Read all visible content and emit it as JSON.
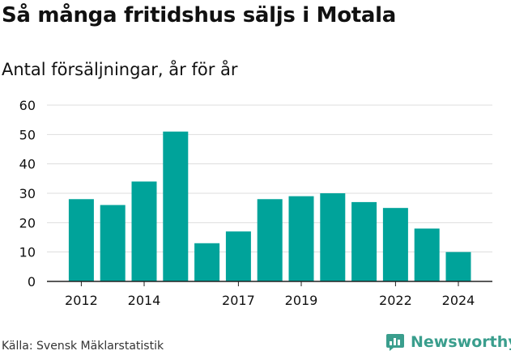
{
  "title": "Så många fritidshus säljs i Motala",
  "subtitle": "Antal försäljningar, år för år",
  "source": "Källa: Svensk Mäklarstatistik",
  "brand": {
    "name": "Newsworthy",
    "icon": "newsworthy-chart-logo-icon",
    "color": "#3a9e8d"
  },
  "colors": {
    "bar": "#00a39a",
    "grid": "#dddddd",
    "axis": "#222222",
    "text": "#111111"
  },
  "chart_data": {
    "type": "bar",
    "title": "Så många fritidshus säljs i Motala",
    "ylabel": "Antal försäljningar, år för år",
    "xlabel": "",
    "categories": [
      "2012",
      "2013",
      "2014",
      "2015",
      "2016",
      "2017",
      "2018",
      "2019",
      "2020",
      "2021",
      "2022",
      "2023",
      "2024"
    ],
    "values": [
      28,
      26,
      34,
      51,
      13,
      17,
      28,
      29,
      30,
      27,
      25,
      18,
      10
    ],
    "x_tick_labels": [
      "2012",
      "2014",
      "2017",
      "2019",
      "2022",
      "2024"
    ],
    "ylim": [
      0,
      60
    ],
    "y_ticks": [
      0,
      10,
      20,
      30,
      40,
      50,
      60
    ],
    "grid": true,
    "legend": "none"
  }
}
